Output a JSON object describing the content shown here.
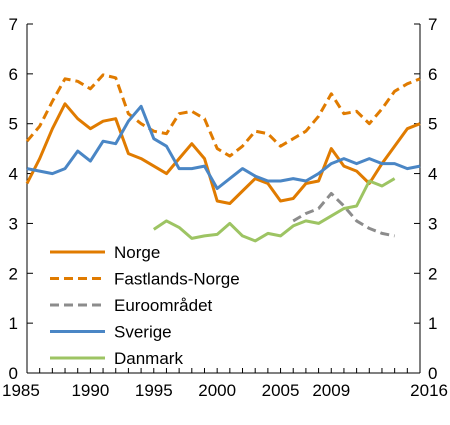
{
  "chart_data": {
    "type": "line",
    "title": "",
    "xlabel": "",
    "ylabel": "",
    "xlim": [
      1985,
      2016
    ],
    "ylim": [
      0,
      7
    ],
    "x_ticks": [
      1985,
      1990,
      1995,
      2000,
      2005,
      2009,
      2016
    ],
    "y_ticks": [
      0,
      1,
      2,
      3,
      4,
      5,
      6,
      7
    ],
    "grid": false,
    "dual_y_axis": true,
    "legend": "bottom-left",
    "series": [
      {
        "name": "Norge",
        "color": "#E07B00",
        "dash": "solid",
        "x": [
          1985,
          1986,
          1987,
          1988,
          1989,
          1990,
          1991,
          1992,
          1993,
          1994,
          1995,
          1996,
          1997,
          1998,
          1999,
          2000,
          2001,
          2002,
          2003,
          2004,
          2005,
          2006,
          2007,
          2008,
          2009,
          2010,
          2011,
          2012,
          2013,
          2014,
          2015,
          2016
        ],
        "values": [
          3.8,
          4.3,
          4.9,
          5.4,
          5.1,
          4.9,
          5.05,
          5.1,
          4.4,
          4.3,
          4.15,
          4.0,
          4.3,
          4.6,
          4.3,
          3.45,
          3.4,
          3.65,
          3.9,
          3.8,
          3.45,
          3.5,
          3.8,
          3.85,
          4.5,
          4.15,
          4.05,
          3.8,
          4.2,
          4.55,
          4.9,
          5.0
        ]
      },
      {
        "name": "Fastlands-Norge",
        "color": "#E07B00",
        "dash": "dashed",
        "x": [
          1985,
          1986,
          1987,
          1988,
          1989,
          1990,
          1991,
          1992,
          1993,
          1994,
          1995,
          1996,
          1997,
          1998,
          1999,
          2000,
          2001,
          2002,
          2003,
          2004,
          2005,
          2006,
          2007,
          2008,
          2009,
          2010,
          2011,
          2012,
          2013,
          2014,
          2015,
          2016
        ],
        "values": [
          4.65,
          4.95,
          5.45,
          5.9,
          5.85,
          5.7,
          5.98,
          5.92,
          5.2,
          5.0,
          4.85,
          4.8,
          5.2,
          5.25,
          5.1,
          4.5,
          4.35,
          4.55,
          4.85,
          4.8,
          4.55,
          4.7,
          4.85,
          5.15,
          5.6,
          5.2,
          5.25,
          5.0,
          5.3,
          5.65,
          5.8,
          5.9
        ]
      },
      {
        "name": "Euroområdet",
        "color": "#8C8C8C",
        "dash": "dashed",
        "x": [
          2006,
          2007,
          2008,
          2009,
          2010,
          2011,
          2012,
          2013,
          2014
        ],
        "values": [
          3.05,
          3.2,
          3.3,
          3.6,
          3.35,
          3.05,
          2.9,
          2.8,
          2.75
        ]
      },
      {
        "name": "Sverige",
        "color": "#4A86C5",
        "dash": "solid",
        "x": [
          1985,
          1986,
          1987,
          1988,
          1989,
          1990,
          1991,
          1992,
          1993,
          1994,
          1995,
          1996,
          1997,
          1998,
          1999,
          2000,
          2001,
          2002,
          2003,
          2004,
          2005,
          2006,
          2007,
          2008,
          2009,
          2010,
          2011,
          2012,
          2013,
          2014,
          2015,
          2016
        ],
        "values": [
          4.1,
          4.05,
          4.0,
          4.1,
          4.45,
          4.25,
          4.65,
          4.6,
          5.05,
          5.35,
          4.7,
          4.55,
          4.1,
          4.1,
          4.15,
          3.7,
          3.9,
          4.1,
          3.95,
          3.85,
          3.85,
          3.9,
          3.85,
          4.0,
          4.2,
          4.3,
          4.2,
          4.3,
          4.2,
          4.2,
          4.1,
          4.15
        ]
      },
      {
        "name": "Danmark",
        "color": "#9DC463",
        "dash": "solid",
        "x": [
          1995,
          1996,
          1997,
          1998,
          1999,
          2000,
          2001,
          2002,
          2003,
          2004,
          2005,
          2006,
          2007,
          2008,
          2009,
          2010,
          2011,
          2012,
          2013,
          2014
        ],
        "values": [
          2.88,
          3.05,
          2.92,
          2.7,
          2.75,
          2.78,
          3.0,
          2.75,
          2.65,
          2.8,
          2.75,
          2.95,
          3.05,
          3.0,
          3.15,
          3.3,
          3.35,
          3.85,
          3.75,
          3.9
        ]
      }
    ]
  }
}
